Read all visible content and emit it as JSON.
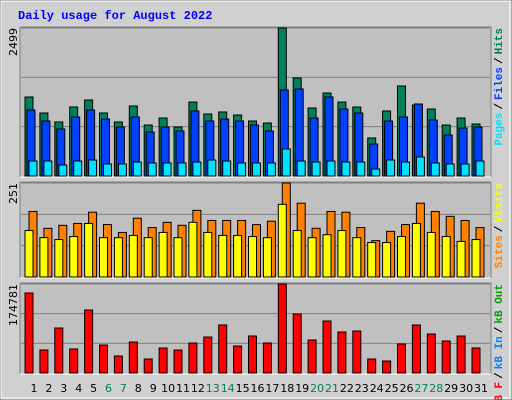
{
  "chart_data": [
    {
      "type": "bar",
      "title": "Daily usage for August 2022",
      "categories": [
        "1",
        "2",
        "3",
        "4",
        "5",
        "6",
        "7",
        "8",
        "9",
        "10",
        "11",
        "12",
        "13",
        "14",
        "15",
        "16",
        "17",
        "18",
        "19",
        "20",
        "21",
        "22",
        "23",
        "24",
        "25",
        "26",
        "27",
        "28",
        "29",
        "30",
        "31"
      ],
      "category_colors": [
        "#000000",
        "#000000",
        "#000000",
        "#000000",
        "#000000",
        "#00805c",
        "#00805c",
        "#000000",
        "#000000",
        "#000000",
        "#000000",
        "#000000",
        "#00805c",
        "#00805c",
        "#000000",
        "#000000",
        "#000000",
        "#000000",
        "#000000",
        "#00805c",
        "#00805c",
        "#000000",
        "#000000",
        "#000000",
        "#000000",
        "#000000",
        "#00805c",
        "#00805c",
        "#000000",
        "#000000",
        "#000000"
      ],
      "legend_separator": "/",
      "ylim": [
        0,
        2499
      ],
      "yticks": [
        2499
      ],
      "series": [
        {
          "name": "Pages",
          "color": "#00e0ff",
          "values": [
            253,
            253,
            186,
            253,
            270,
            203,
            203,
            236,
            220,
            220,
            220,
            236,
            270,
            253,
            220,
            220,
            220,
            456,
            253,
            236,
            253,
            236,
            236,
            118,
            270,
            236,
            321,
            220,
            203,
            203,
            253
          ]
        },
        {
          "name": "Files",
          "color": "#0040ff",
          "values": [
            1114,
            929,
            794,
            996,
            1114,
            962,
            827,
            996,
            743,
            827,
            760,
            1098,
            929,
            962,
            929,
            861,
            760,
            1452,
            1469,
            979,
            1334,
            1131,
            1064,
            540,
            929,
            996,
            1216,
            946,
            692,
            810,
            827
          ]
        },
        {
          "name": "Hits",
          "color": "#00805c",
          "values": [
            1334,
            1064,
            912,
            1165,
            1283,
            1064,
            912,
            1182,
            861,
            979,
            827,
            1249,
            1047,
            1081,
            1030,
            929,
            895,
            2499,
            1655,
            1148,
            1401,
            1249,
            1165,
            642,
            1098,
            1520,
            1199,
            1131,
            861,
            979,
            878
          ]
        }
      ]
    },
    {
      "type": "bar",
      "ylim": [
        0,
        251
      ],
      "yticks": [
        251
      ],
      "series": [
        {
          "name": "Sites",
          "color": "#ff8000",
          "values": [
            175,
            130,
            138,
            143,
            173,
            140,
            119,
            157,
            132,
            146,
            138,
            178,
            151,
            151,
            151,
            140,
            149,
            251,
            197,
            130,
            175,
            173,
            132,
            97,
            122,
            140,
            197,
            175,
            162,
            151,
            132
          ]
        },
        {
          "name": "Visits",
          "color": "#ffff00",
          "values": [
            124,
            105,
            100,
            108,
            143,
            105,
            105,
            111,
            105,
            119,
            105,
            146,
            119,
            111,
            111,
            108,
            105,
            194,
            124,
            105,
            113,
            124,
            105,
            92,
            92,
            108,
            143,
            119,
            108,
            95,
            100
          ]
        }
      ]
    },
    {
      "type": "bar",
      "ylim": [
        0,
        174781
      ],
      "yticks": [
        174781
      ],
      "series": [
        {
          "name": "kB F",
          "color": "#ff0000",
          "values": [
            157120,
            45172,
            88380,
            47136,
            123732,
            54992,
            33388,
            60884,
            27496,
            49100,
            45172,
            58920,
            70704,
            94272,
            53028,
            72668,
            58920,
            174781,
            115876,
            64812,
            102128,
            80524,
            82488,
            27496,
            23568,
            56956,
            94272,
            76596,
            62848,
            72668,
            49100
          ]
        },
        {
          "name": "kB In",
          "color": "#0080ff"
        },
        {
          "name": "kB Out",
          "color": "#00a000"
        }
      ]
    }
  ]
}
